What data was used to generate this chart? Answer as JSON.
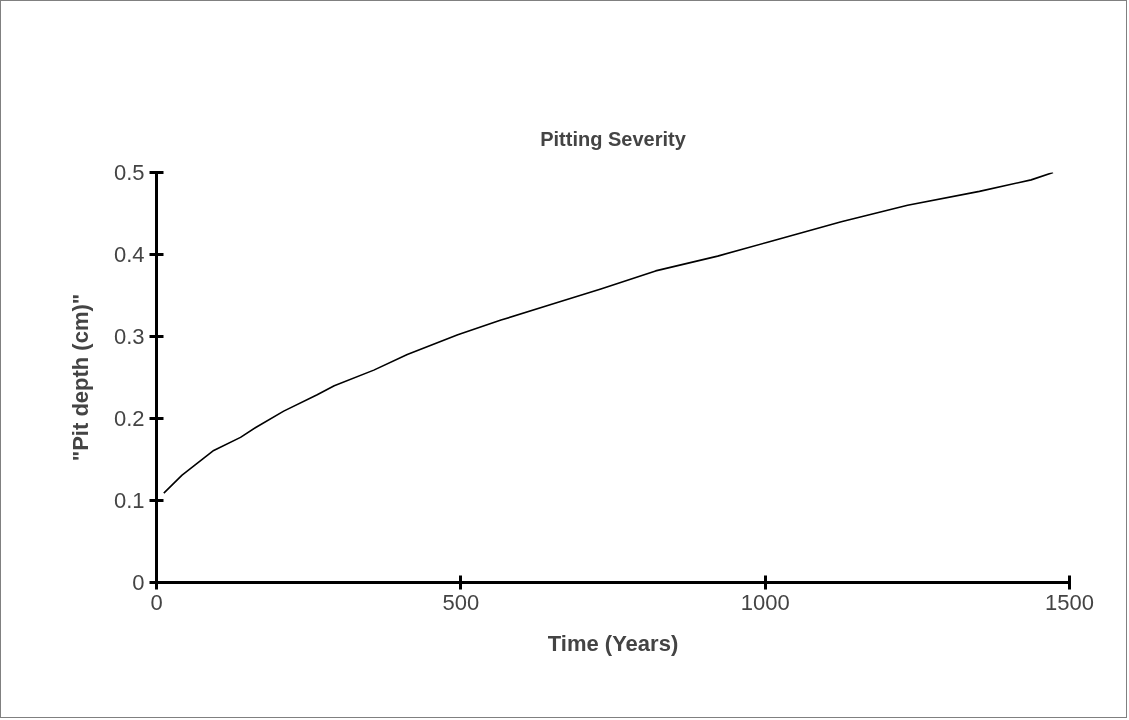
{
  "chart_data": {
    "type": "line",
    "title": "Pitting Severity",
    "xlabel": "Time (Years)",
    "ylabel": "\"Pit depth (cm)\"",
    "x": [
      12,
      42,
      94,
      138,
      163,
      209,
      264,
      292,
      357,
      412,
      495,
      566,
      648,
      730,
      820,
      922,
      1004,
      1125,
      1234,
      1352,
      1437,
      1473
    ],
    "series": [
      {
        "color": "#000000",
        "values": [
          0.109,
          0.131,
          0.161,
          0.177,
          0.189,
          0.209,
          0.229,
          0.24,
          0.259,
          0.278,
          0.302,
          0.32,
          0.339,
          0.358,
          0.38,
          0.398,
          0.415,
          0.44,
          0.46,
          0.477,
          0.491,
          0.5
        ]
      }
    ],
    "xlim": [
      0,
      1500
    ],
    "xticks": [
      0,
      500,
      1000,
      1500
    ],
    "ylim": [
      0,
      0.5
    ],
    "yticks": [
      0,
      0.1,
      0.2,
      0.3,
      0.4,
      0.5
    ],
    "grid": false,
    "marker": "none",
    "line_style": "solid"
  }
}
